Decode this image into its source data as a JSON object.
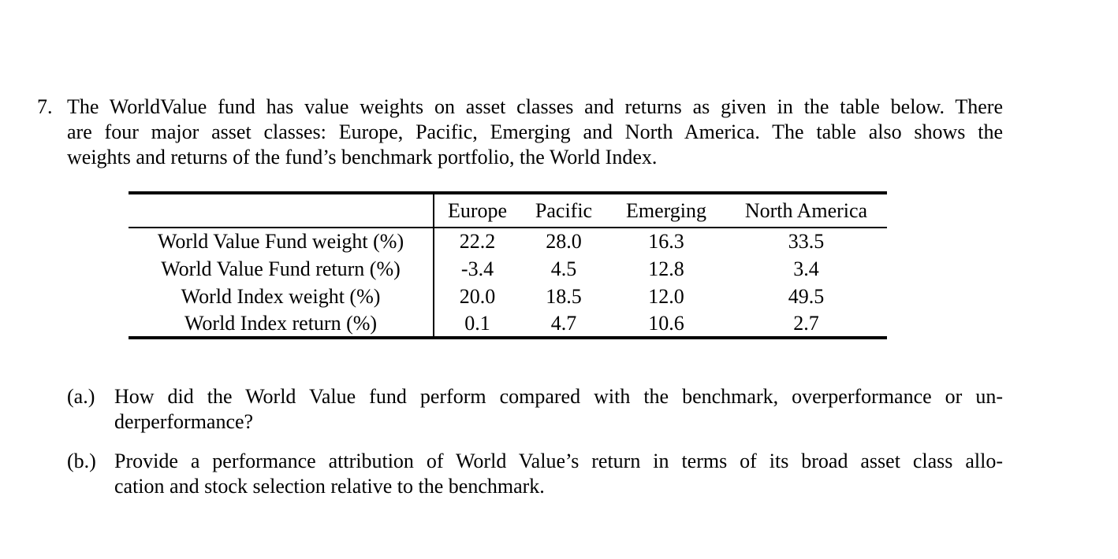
{
  "problem": {
    "number": "7.",
    "lines": [
      "The WorldValue fund has value weights on asset classes and returns as given in the table below. There",
      "are four major asset classes: Europe, Pacific, Emerging and North America. The table also shows the",
      "weights and returns of the fund’s benchmark portfolio, the World Index."
    ]
  },
  "table": {
    "corner": "",
    "column_headers": [
      "Europe",
      "Pacific",
      "Emerging",
      "North America"
    ],
    "rows": [
      {
        "label": "World Value Fund weight (%)",
        "values": [
          "22.2",
          "28.0",
          "16.3",
          "33.5"
        ]
      },
      {
        "label": "World Value Fund return (%)",
        "values": [
          "-3.4",
          "4.5",
          "12.8",
          "3.4"
        ]
      },
      {
        "label": "World Index weight (%)",
        "values": [
          "20.0",
          "18.5",
          "12.0",
          "49.5"
        ]
      },
      {
        "label": "World Index return (%)",
        "values": [
          "0.1",
          "4.7",
          "10.6",
          "2.7"
        ]
      }
    ]
  },
  "subquestions": [
    {
      "label": "(a.)",
      "lines": [
        "How did the World Value fund perform compared with the benchmark, overperformance or un-",
        "derperformance?"
      ]
    },
    {
      "label": "(b.)",
      "lines": [
        "Provide a performance attribution of World Value’s return in terms of its broad asset class allo-",
        "cation and stock selection relative to the benchmark."
      ]
    }
  ],
  "colors": {
    "text": "#000000",
    "background": "#ffffff",
    "rule": "#000000"
  }
}
